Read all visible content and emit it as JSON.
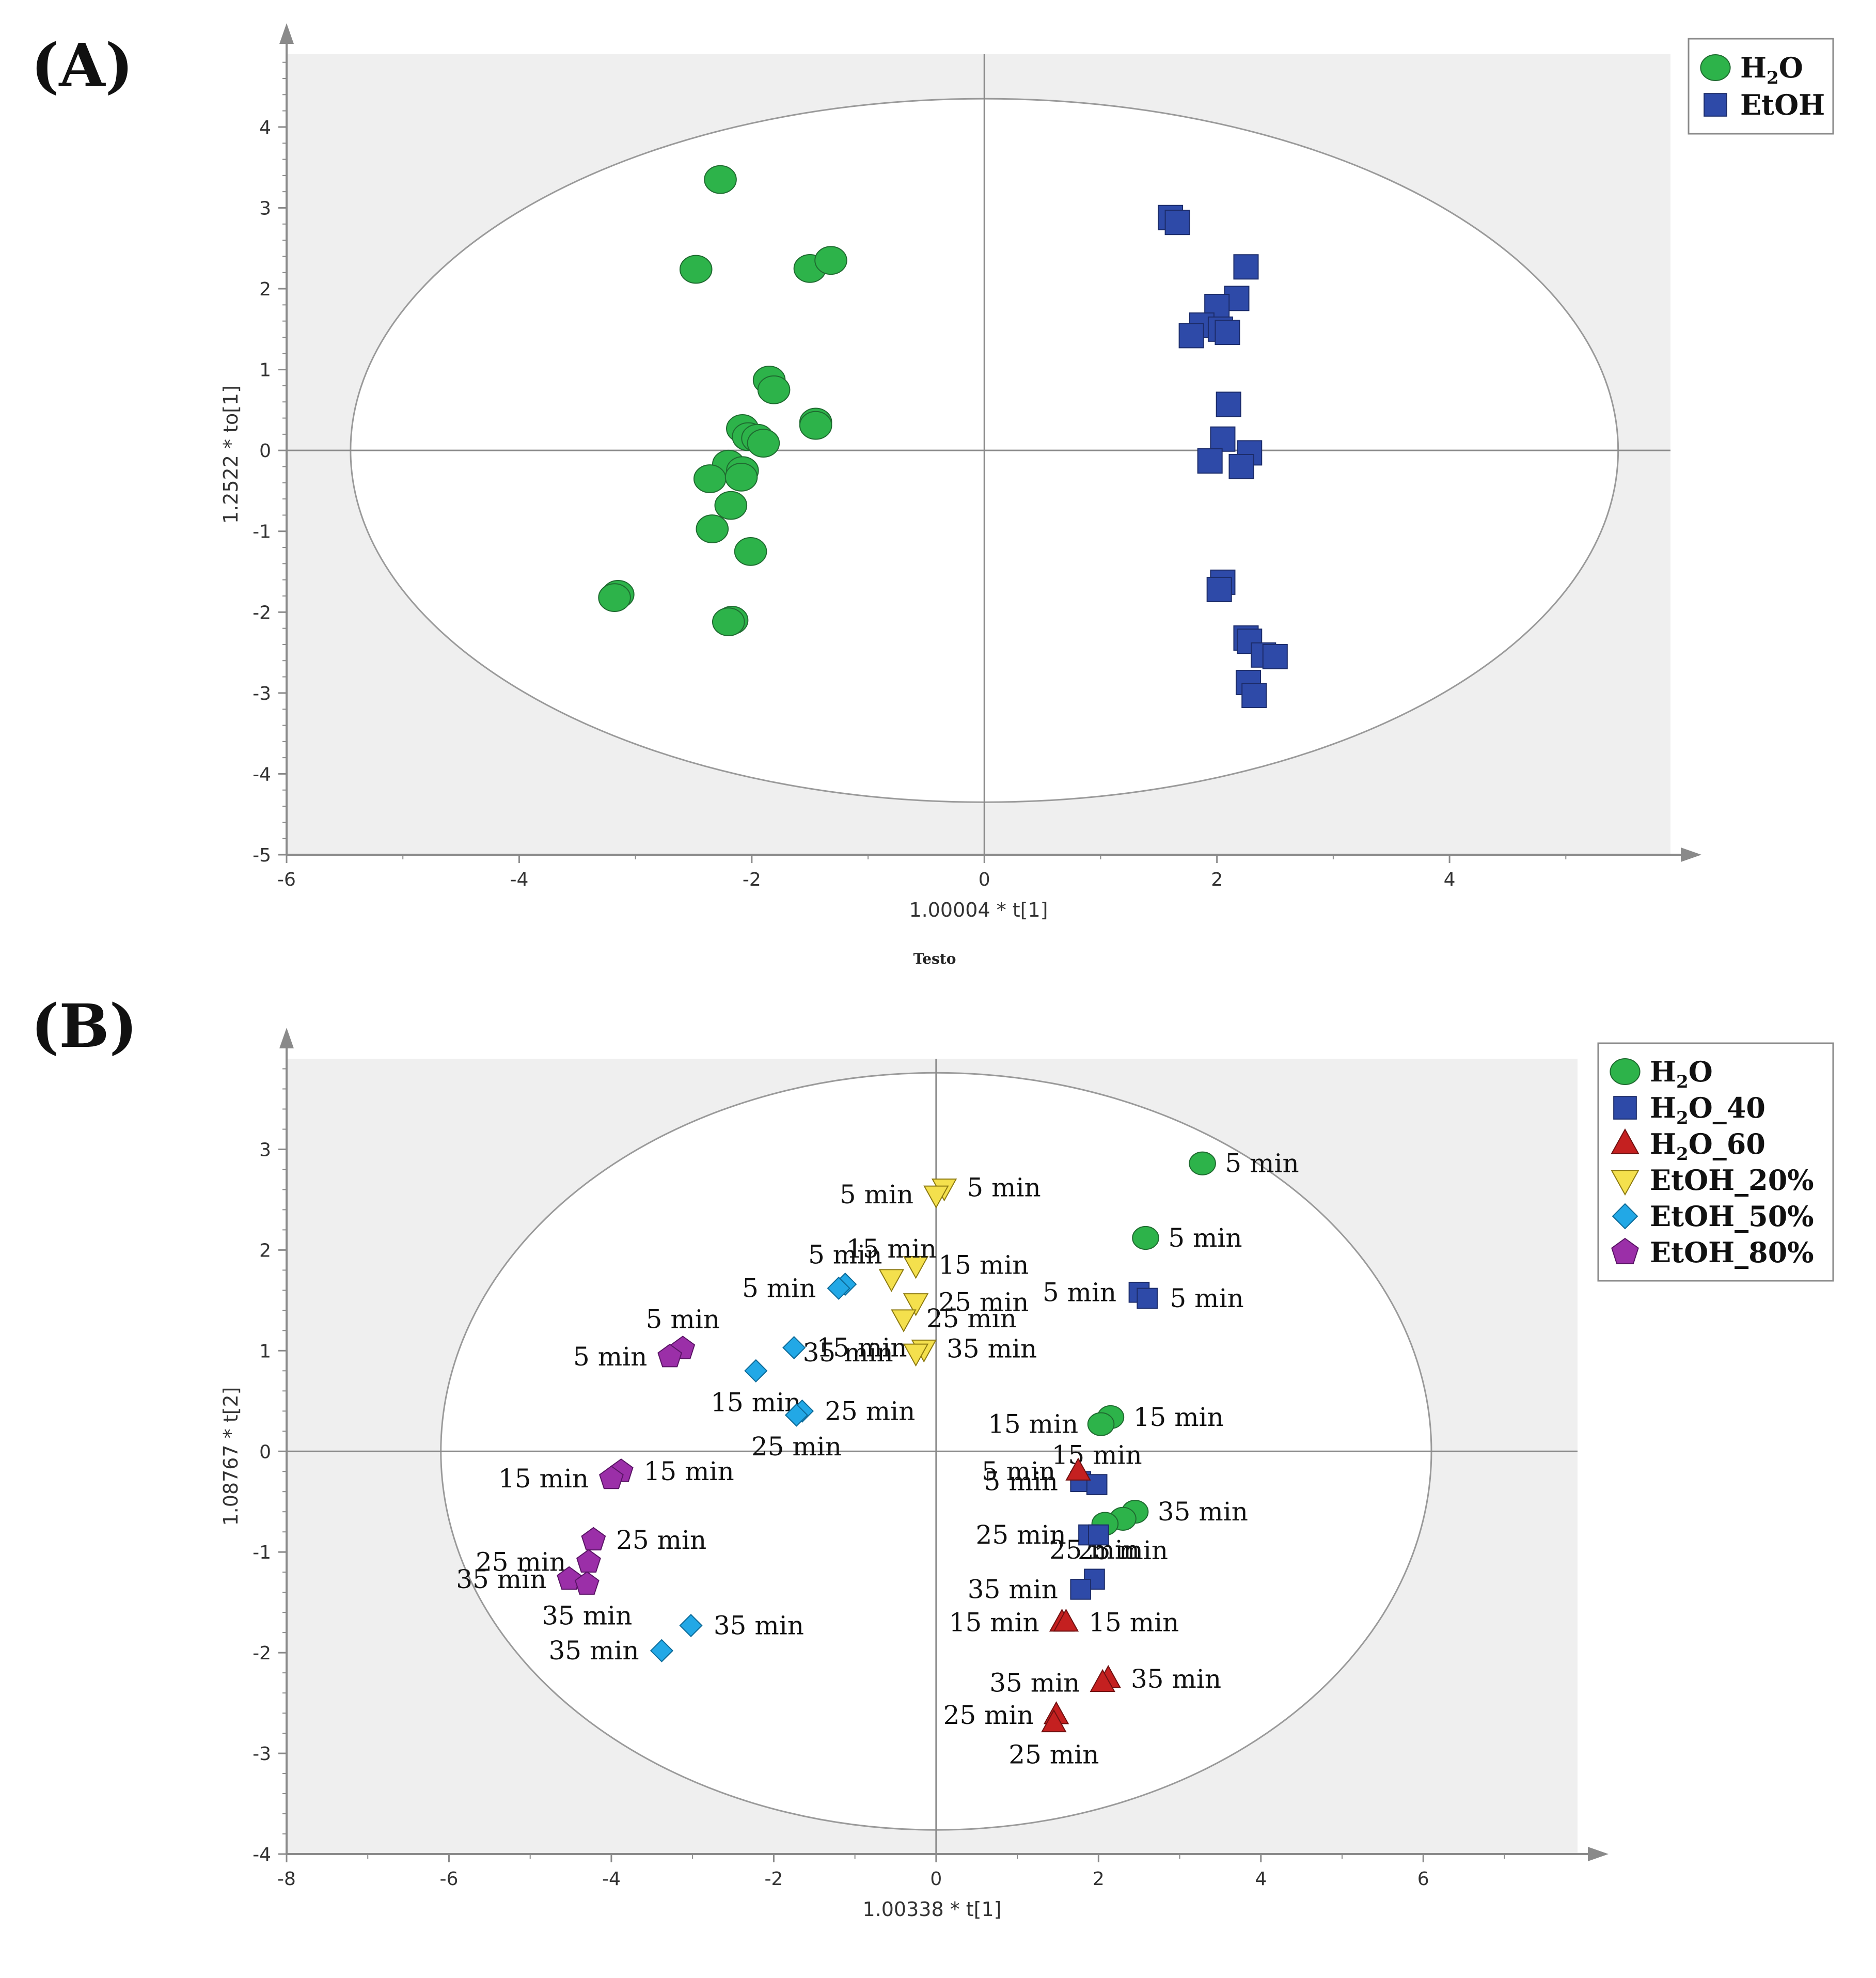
{
  "figure": {
    "panel_a_label": "(A)",
    "panel_b_label": "(B)",
    "caption": "Testo",
    "colors": {
      "H2O": "#2db34a",
      "EtOH": "#2e4aa8",
      "H2O_40": "#2e4aa8",
      "H2O_60": "#c42020",
      "EtOH_20%": "#f4e04d",
      "EtOH_50%": "#22a8e6",
      "EtOH_80%": "#9b2fa8"
    }
  },
  "chart_data": [
    {
      "id": "A",
      "type": "scatter",
      "title": "",
      "xlabel": "1.00004 * t[1]",
      "ylabel": "1.2522 * to[1]",
      "xlim": [
        -6,
        5.9
      ],
      "ylim": [
        -5,
        4.9
      ],
      "xticks": [
        -6,
        -4,
        -2,
        0,
        2,
        4
      ],
      "yticks": [
        -5,
        -4,
        -3,
        -2,
        -1,
        0,
        1,
        2,
        3,
        4
      ],
      "ellipse": {
        "rx": 5.45,
        "ry": 4.35
      },
      "grid": false,
      "legend_position": "top-right",
      "legend": [
        "H2O",
        "EtOH"
      ],
      "series": [
        {
          "name": "H2O",
          "marker": "circle",
          "points": [
            [
              -2.27,
              3.35
            ],
            [
              -2.48,
              2.24
            ],
            [
              -1.5,
              2.25
            ],
            [
              -1.32,
              2.35
            ],
            [
              -1.85,
              0.87
            ],
            [
              -1.81,
              0.75
            ],
            [
              -1.45,
              0.35
            ],
            [
              -1.45,
              0.31
            ],
            [
              -2.08,
              0.27
            ],
            [
              -2.03,
              0.17
            ],
            [
              -1.95,
              0.15
            ],
            [
              -1.9,
              0.09
            ],
            [
              -2.2,
              -0.17
            ],
            [
              -2.08,
              -0.25
            ],
            [
              -2.36,
              -0.35
            ],
            [
              -2.09,
              -0.33
            ],
            [
              -2.18,
              -0.68
            ],
            [
              -2.34,
              -0.97
            ],
            [
              -2.01,
              -1.25
            ],
            [
              -3.15,
              -1.78
            ],
            [
              -3.18,
              -1.82
            ],
            [
              -2.17,
              -2.1
            ],
            [
              -2.2,
              -2.12
            ]
          ]
        },
        {
          "name": "EtOH",
          "marker": "square",
          "points": [
            [
              1.6,
              2.88
            ],
            [
              1.66,
              2.82
            ],
            [
              2.25,
              2.27
            ],
            [
              2.17,
              1.88
            ],
            [
              2.0,
              1.78
            ],
            [
              1.87,
              1.55
            ],
            [
              1.78,
              1.42
            ],
            [
              2.03,
              1.5
            ],
            [
              2.09,
              1.46
            ],
            [
              2.1,
              0.57
            ],
            [
              2.05,
              0.14
            ],
            [
              2.28,
              -0.03
            ],
            [
              1.94,
              -0.13
            ],
            [
              2.21,
              -0.2
            ],
            [
              2.05,
              -1.63
            ],
            [
              2.02,
              -1.72
            ],
            [
              2.25,
              -2.32
            ],
            [
              2.28,
              -2.36
            ],
            [
              2.4,
              -2.53
            ],
            [
              2.5,
              -2.55
            ],
            [
              2.27,
              -2.87
            ],
            [
              2.32,
              -3.03
            ]
          ]
        }
      ]
    },
    {
      "id": "B",
      "type": "scatter",
      "title": "",
      "xlabel": "1.00338 * t[1]",
      "ylabel": "1.08767 * t[2]",
      "xlim": [
        -8,
        7.9
      ],
      "ylim": [
        -4,
        3.9
      ],
      "xticks": [
        -8,
        -6,
        -4,
        -2,
        0,
        2,
        4,
        6
      ],
      "yticks": [
        -4,
        -3,
        -2,
        -1,
        0,
        1,
        2,
        3
      ],
      "ellipse": {
        "rx": 6.1,
        "ry": 3.76
      },
      "grid": false,
      "legend_position": "top-right",
      "legend": [
        "H2O",
        "H2O_40",
        "H2O_60",
        "EtOH_20%",
        "EtOH_50%",
        "EtOH_80%"
      ],
      "series": [
        {
          "name": "H2O",
          "marker": "circle",
          "points": [
            {
              "x": 3.28,
              "y": 2.86,
              "label": "5 min",
              "side": "right"
            },
            {
              "x": 2.58,
              "y": 2.12,
              "label": "5 min",
              "side": "right"
            },
            {
              "x": 2.15,
              "y": 0.34,
              "label": "15 min",
              "side": "right"
            },
            {
              "x": 2.03,
              "y": 0.27,
              "label": "15 min",
              "side": "left"
            },
            {
              "x": 2.45,
              "y": -0.6,
              "label": "35 min",
              "side": "right"
            },
            {
              "x": 2.3,
              "y": -0.67,
              "label": "25 min",
              "side": "below"
            },
            {
              "x": 2.08,
              "y": -0.72,
              "label": "",
              "side": "right"
            }
          ]
        },
        {
          "name": "H2O_40",
          "marker": "square",
          "points": [
            {
              "x": 2.5,
              "y": 1.58,
              "label": "5 min",
              "side": "left"
            },
            {
              "x": 2.6,
              "y": 1.52,
              "label": "5 min",
              "side": "right"
            },
            {
              "x": 1.78,
              "y": -0.3,
              "label": "5 min",
              "side": "left"
            },
            {
              "x": 1.98,
              "y": -0.33,
              "label": "15 min",
              "side": "above"
            },
            {
              "x": 1.88,
              "y": -0.83,
              "label": "25 min",
              "side": "left"
            },
            {
              "x": 2.0,
              "y": -0.83,
              "label": "",
              "side": "right"
            },
            {
              "x": 1.95,
              "y": -1.27,
              "label": "25 min",
              "side": "above"
            },
            {
              "x": 1.78,
              "y": -1.37,
              "label": "35 min",
              "side": "left"
            }
          ]
        },
        {
          "name": "H2O_60",
          "marker": "triangle-up",
          "points": [
            {
              "x": 1.75,
              "y": -0.2,
              "label": "5 min",
              "side": "left"
            },
            {
              "x": 1.55,
              "y": -1.7,
              "label": "15 min",
              "side": "left"
            },
            {
              "x": 1.6,
              "y": -1.7,
              "label": "15 min",
              "side": "right"
            },
            {
              "x": 2.12,
              "y": -2.26,
              "label": "35 min",
              "side": "right"
            },
            {
              "x": 2.05,
              "y": -2.3,
              "label": "35 min",
              "side": "left"
            },
            {
              "x": 1.48,
              "y": -2.62,
              "label": "25 min",
              "side": "left"
            },
            {
              "x": 1.45,
              "y": -2.7,
              "label": "25 min",
              "side": "below"
            }
          ]
        },
        {
          "name": "EtOH_20%",
          "marker": "triangle-down",
          "points": [
            {
              "x": 0.1,
              "y": 2.62,
              "label": "5 min",
              "side": "right"
            },
            {
              "x": 0.0,
              "y": 2.55,
              "label": "5 min",
              "side": "left"
            },
            {
              "x": -0.25,
              "y": 1.85,
              "label": "15 min",
              "side": "right"
            },
            {
              "x": -0.55,
              "y": 1.72,
              "label": "15 min",
              "side": "above"
            },
            {
              "x": -0.25,
              "y": 1.48,
              "label": "25 min",
              "side": "right"
            },
            {
              "x": -0.4,
              "y": 1.32,
              "label": "25 min",
              "side": "right"
            },
            {
              "x": -0.15,
              "y": 1.02,
              "label": "35 min",
              "side": "right"
            },
            {
              "x": -0.25,
              "y": 0.98,
              "label": "35 min",
              "side": "left"
            }
          ]
        },
        {
          "name": "EtOH_50%",
          "marker": "diamond",
          "points": [
            {
              "x": -1.12,
              "y": 1.66,
              "label": "5 min",
              "side": "above"
            },
            {
              "x": -1.2,
              "y": 1.62,
              "label": "5 min",
              "side": "left"
            },
            {
              "x": -1.75,
              "y": 1.03,
              "label": "15 min",
              "side": "right"
            },
            {
              "x": -2.22,
              "y": 0.8,
              "label": "15 min",
              "side": "below"
            },
            {
              "x": -1.65,
              "y": 0.4,
              "label": "25 min",
              "side": "right"
            },
            {
              "x": -1.72,
              "y": 0.36,
              "label": "25 min",
              "side": "below"
            },
            {
              "x": -3.02,
              "y": -1.73,
              "label": "35 min",
              "side": "right"
            },
            {
              "x": -3.38,
              "y": -1.98,
              "label": "35 min",
              "side": "left"
            }
          ]
        },
        {
          "name": "EtOH_80%",
          "marker": "pentagon",
          "points": [
            {
              "x": -3.12,
              "y": 1.02,
              "label": "5 min",
              "side": "above"
            },
            {
              "x": -3.28,
              "y": 0.94,
              "label": "5 min",
              "side": "left"
            },
            {
              "x": -3.88,
              "y": -0.2,
              "label": "15 min",
              "side": "right"
            },
            {
              "x": -4.0,
              "y": -0.27,
              "label": "15 min",
              "side": "left"
            },
            {
              "x": -4.22,
              "y": -0.88,
              "label": "25 min",
              "side": "right"
            },
            {
              "x": -4.28,
              "y": -1.1,
              "label": "25 min",
              "side": "left"
            },
            {
              "x": -4.52,
              "y": -1.27,
              "label": "35 min",
              "side": "left"
            },
            {
              "x": -4.3,
              "y": -1.32,
              "label": "35 min",
              "side": "below"
            }
          ]
        }
      ]
    }
  ]
}
